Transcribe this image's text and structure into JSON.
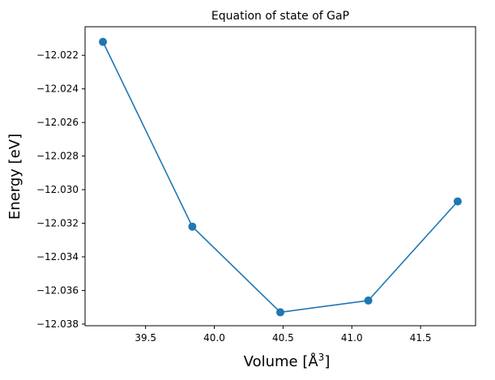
{
  "chart_data": {
    "type": "line",
    "title": "Equation of state of GaP",
    "xlabel": "Volume [Å3]",
    "xlabel_parts": {
      "base": "Volume [Å",
      "superscript": "3",
      "suffix": "]"
    },
    "ylabel": "Energy [eV]",
    "x": [
      39.19,
      39.84,
      40.48,
      41.12,
      41.77
    ],
    "series": [
      {
        "values": [
          -12.0212,
          -12.0322,
          -12.0373,
          -12.0366,
          -12.0307
        ]
      }
    ],
    "xlim": [
      39.06,
      41.9
    ],
    "ylim": [
      -12.0381,
      -12.0203
    ],
    "x_ticks": [
      39.5,
      40.0,
      40.5,
      41.0,
      41.5
    ],
    "x_tick_labels": [
      "39.5",
      "40.0",
      "40.5",
      "41.0",
      "41.5"
    ],
    "y_ticks": [
      -12.022,
      -12.024,
      -12.026,
      -12.028,
      -12.03,
      -12.032,
      -12.034,
      -12.036,
      -12.038
    ],
    "y_tick_labels": [
      "−12.022",
      "−12.024",
      "−12.026",
      "−12.028",
      "−12.030",
      "−12.032",
      "−12.034",
      "−12.036",
      "−12.038"
    ],
    "line_color": "#1f77b4",
    "marker": "circle",
    "grid": false,
    "legend": "none"
  }
}
